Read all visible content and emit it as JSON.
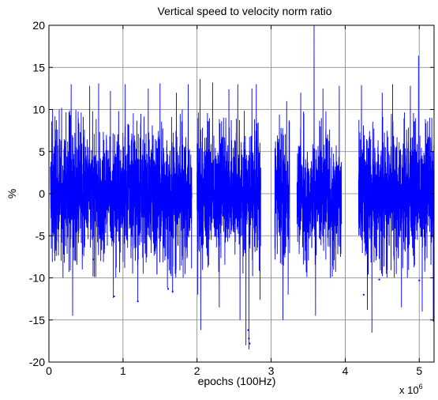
{
  "chart_data": {
    "type": "line",
    "title": "Vertical speed to velocity norm ratio",
    "xlabel": "epochs (100Hz)",
    "ylabel": "%",
    "x_multiplier": "x 10",
    "x_multiplier_exponent": "6",
    "xlim": [
      0,
      5.2
    ],
    "ylim": [
      -20,
      20
    ],
    "x_ticks": [
      0,
      1,
      2,
      3,
      4,
      5
    ],
    "y_ticks": [
      -20,
      -15,
      -10,
      -5,
      0,
      5,
      10,
      15,
      20
    ],
    "grid": true,
    "line_color": "#0000ff",
    "data_segments": [
      {
        "start": 0.02,
        "end": 0.5,
        "ymin": -14.5,
        "ymax": 13.0,
        "spikes": [
          [
            0.05,
            10.0
          ],
          [
            0.08,
            -8.0
          ],
          [
            0.17,
            10.2
          ],
          [
            0.3,
            13.0
          ],
          [
            0.32,
            -14.5
          ],
          [
            0.45,
            -9.0
          ]
        ]
      },
      {
        "start": 0.5,
        "end": 0.98,
        "ymin": -12.5,
        "ymax": 13.3,
        "spikes": [
          [
            0.55,
            12.8
          ],
          [
            0.67,
            13.1
          ],
          [
            0.7,
            -8.0
          ],
          [
            0.83,
            12.2
          ],
          [
            0.87,
            -12.4
          ],
          [
            0.95,
            5.8
          ]
        ]
      },
      {
        "start": 0.98,
        "end": 1.93,
        "ymin": -12.8,
        "ymax": 13.1,
        "spikes": [
          [
            1.03,
            13.0
          ],
          [
            1.13,
            -9.5
          ],
          [
            1.2,
            -12.8
          ],
          [
            1.34,
            12.5
          ],
          [
            1.5,
            13.1
          ],
          [
            1.6,
            -11.2
          ],
          [
            1.67,
            -11.8
          ],
          [
            1.72,
            12.0
          ],
          [
            1.8,
            10.0
          ],
          [
            1.88,
            13.0
          ]
        ]
      },
      {
        "start": 2.0,
        "end": 2.62,
        "ymin": -16.2,
        "ymax": 13.6,
        "spikes": [
          [
            2.01,
            -12.0
          ],
          [
            2.04,
            13.6
          ],
          [
            2.05,
            -16.2
          ],
          [
            2.21,
            13.2
          ],
          [
            2.3,
            -13.5
          ],
          [
            2.43,
            12.4
          ],
          [
            2.55,
            13.0
          ],
          [
            2.58,
            -15.0
          ]
        ]
      },
      {
        "start": 2.62,
        "end": 2.86,
        "ymin": -18.5,
        "ymax": 13.0,
        "spikes": [
          [
            2.66,
            -18.0
          ],
          [
            2.7,
            -18.5
          ],
          [
            2.74,
            12.5
          ],
          [
            2.8,
            13.0
          ],
          [
            2.85,
            -12.6
          ]
        ]
      },
      {
        "start": 3.05,
        "end": 3.25,
        "ymin": -15.0,
        "ymax": 11.0,
        "spikes": [
          [
            3.1,
            6.5
          ],
          [
            3.16,
            -15.0
          ],
          [
            3.21,
            11.0
          ],
          [
            3.23,
            -12.0
          ]
        ]
      },
      {
        "start": 3.35,
        "end": 3.95,
        "ymin": -14.5,
        "ymax": 20.0,
        "spikes": [
          [
            3.4,
            12.0
          ],
          [
            3.58,
            20.0
          ],
          [
            3.6,
            -14.5
          ],
          [
            3.7,
            12.5
          ],
          [
            3.8,
            -10.0
          ],
          [
            3.92,
            12.8
          ]
        ]
      },
      {
        "start": 4.18,
        "end": 5.2,
        "ymin": -16.5,
        "ymax": 16.4,
        "spikes": [
          [
            4.22,
            12.9
          ],
          [
            4.3,
            -13.8
          ],
          [
            4.36,
            -16.5
          ],
          [
            4.5,
            12.0
          ],
          [
            4.64,
            13.0
          ],
          [
            4.76,
            -13.5
          ],
          [
            4.84,
            -10.0
          ],
          [
            4.88,
            12.8
          ],
          [
            4.99,
            16.4
          ],
          [
            5.04,
            -14.0
          ],
          [
            5.19,
            -15.2
          ]
        ]
      }
    ],
    "outlier_points": [
      [
        0.6,
        -7.8
      ],
      [
        0.88,
        -12.2
      ],
      [
        1.2,
        -12.8
      ],
      [
        1.61,
        -11.3
      ],
      [
        1.67,
        -11.6
      ],
      [
        2.69,
        -16.2
      ],
      [
        2.7,
        -17.2
      ],
      [
        2.71,
        -17.8
      ],
      [
        4.25,
        -12.0
      ],
      [
        4.46,
        -10.2
      ],
      [
        5.0,
        -10.3
      ]
    ]
  }
}
